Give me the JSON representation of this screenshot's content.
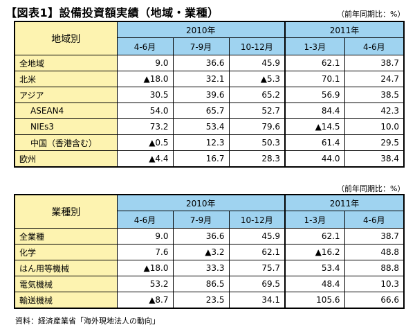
{
  "title": "【図表1】設備投資額実績（地域・業種）",
  "unit_label": "（前年同期比：%）",
  "table1": {
    "corner": "地域別",
    "year_2010": "2010年",
    "year_2011": "2011年",
    "periods": [
      "4-6月",
      "7-9月",
      "10-12月",
      "1-3月",
      "4-6月"
    ],
    "rows": [
      {
        "label": "全地域",
        "values": [
          "9.0",
          "36.6",
          "45.9",
          "62.1",
          "38.7"
        ]
      },
      {
        "label": "北米",
        "values": [
          "▲18.0",
          "32.1",
          "▲5.3",
          "70.1",
          "24.7"
        ]
      },
      {
        "label": "アジア",
        "values": [
          "30.5",
          "39.6",
          "65.2",
          "56.9",
          "38.5"
        ]
      },
      {
        "label": "ASEAN4",
        "values": [
          "54.0",
          "65.7",
          "52.7",
          "84.4",
          "42.3"
        ]
      },
      {
        "label": "NIEs3",
        "values": [
          "73.2",
          "53.4",
          "79.6",
          "▲14.5",
          "10.0"
        ]
      },
      {
        "label": "中国（香港含む）",
        "values": [
          "▲0.5",
          "12.3",
          "50.3",
          "61.4",
          "29.5"
        ]
      },
      {
        "label": "欧州",
        "values": [
          "▲4.4",
          "16.7",
          "28.3",
          "44.0",
          "38.4"
        ]
      }
    ]
  },
  "table2": {
    "corner": "業種別",
    "year_2010": "2010年",
    "year_2011": "2011年",
    "periods": [
      "4-6月",
      "7-9月",
      "10-12月",
      "1-3月",
      "4-6月"
    ],
    "rows": [
      {
        "label": "全業種",
        "values": [
          "9.0",
          "36.6",
          "45.9",
          "62.1",
          "38.7"
        ]
      },
      {
        "label": "化学",
        "values": [
          "7.6",
          "▲3.2",
          "62.1",
          "▲16.2",
          "48.8"
        ]
      },
      {
        "label": "はん用等機械",
        "values": [
          "▲18.0",
          "33.3",
          "75.7",
          "53.4",
          "88.8"
        ]
      },
      {
        "label": "電気機械",
        "values": [
          "53.2",
          "86.5",
          "69.5",
          "48.4",
          "10.3"
        ]
      },
      {
        "label": "輸送機械",
        "values": [
          "▲8.7",
          "23.5",
          "34.1",
          "105.6",
          "66.6"
        ]
      }
    ]
  },
  "source": "資料：経済産業省「海外現地法人の動向」"
}
